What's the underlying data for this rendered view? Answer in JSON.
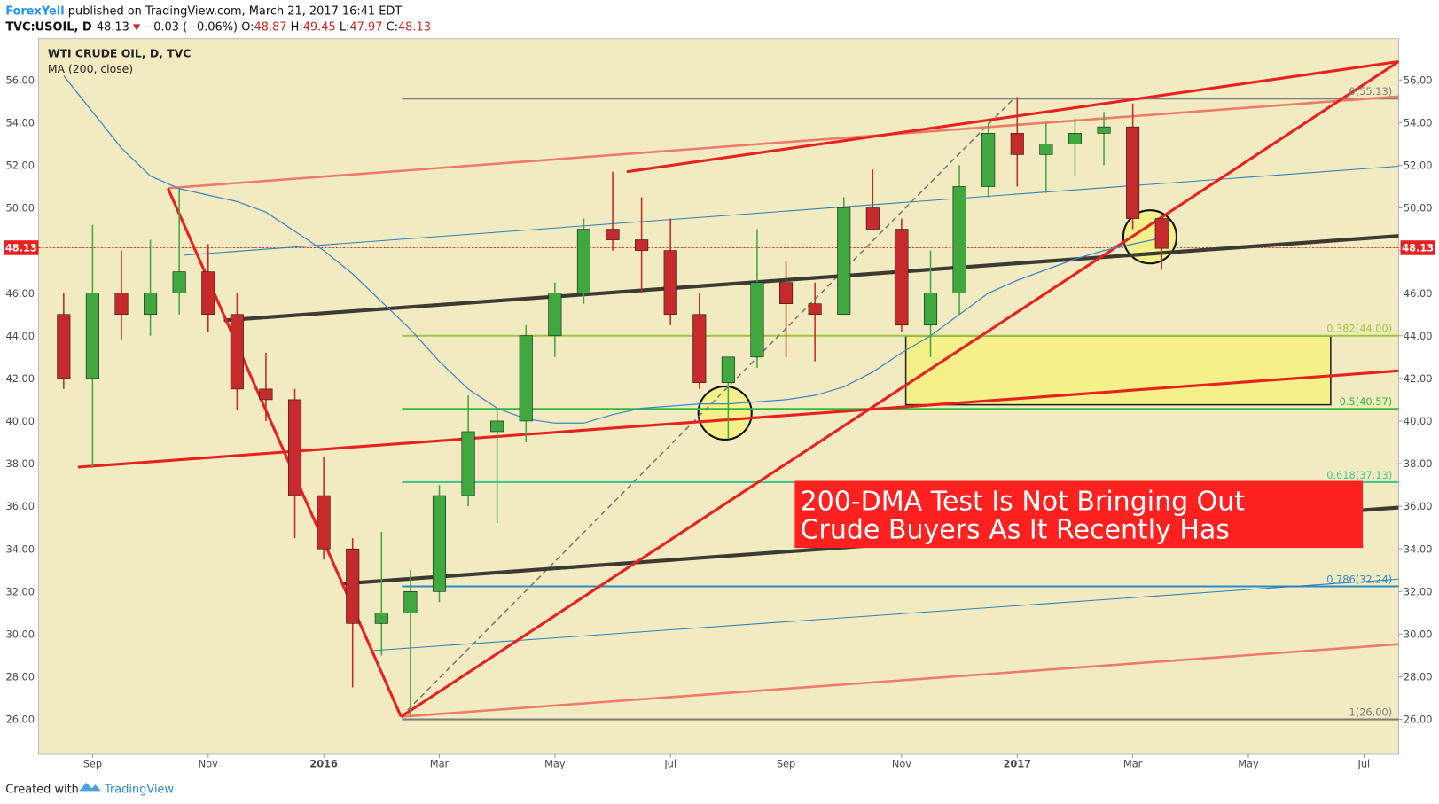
{
  "header": {
    "author": "ForexYell",
    "published": "published on TradingView.com, March 21, 2017 16:41 EDT",
    "symbol": "TVC:USOIL, D",
    "price": "48.13",
    "change": "−0.03 (−0.06%)",
    "ohlc": [
      {
        "key": "O:",
        "value": "48.87"
      },
      {
        "key": "H:",
        "value": "49.45"
      },
      {
        "key": "L:",
        "value": "47.97"
      },
      {
        "key": "C:",
        "value": "48.13"
      }
    ]
  },
  "footer": {
    "created": "Created with",
    "brand": "TradingView"
  },
  "chart_data": {
    "type": "candlestick",
    "title": "WTI CRUDE OIL, D, TVC",
    "categories": [
      null,
      null,
      null,
      null,
      null,
      null,
      null,
      null,
      null,
      null,
      null,
      null,
      null,
      null,
      null,
      null,
      null,
      null,
      null,
      null,
      null,
      null,
      null,
      null,
      null,
      null,
      null,
      null,
      null,
      null,
      null,
      null,
      null,
      null,
      null,
      null,
      null,
      null,
      null
    ],
    "open": [
      45,
      42,
      46,
      45,
      46,
      47,
      45,
      41.5,
      41,
      36.5,
      34,
      30.5,
      31,
      32,
      36.5,
      39.5,
      40,
      44,
      46,
      49,
      48.5,
      48,
      45,
      41.8,
      43,
      46.5,
      45.5,
      45,
      50,
      49,
      44.5,
      46,
      51,
      53.5,
      52.5,
      53,
      53.5,
      53.8,
      49.5
    ],
    "high": [
      46,
      49.2,
      48,
      48.5,
      50.9,
      48.3,
      46,
      43.2,
      41.5,
      38.3,
      34.5,
      34.8,
      33,
      37,
      41.2,
      40.5,
      44.5,
      46.5,
      49.5,
      51.7,
      50.5,
      49.5,
      46,
      43,
      49,
      47.5,
      46.5,
      50.5,
      51.8,
      49.5,
      48,
      52,
      54,
      55.2,
      54,
      54.2,
      54.5,
      54.9,
      49.5
    ],
    "low": [
      41.5,
      37.8,
      43.8,
      44,
      45,
      44.2,
      40.5,
      40,
      34.5,
      33.5,
      27.5,
      29,
      26.1,
      31.5,
      36,
      35.2,
      39,
      43,
      45.5,
      48,
      46,
      44.5,
      41.5,
      39.2,
      42.5,
      43,
      42.8,
      45,
      49,
      44.2,
      43,
      45,
      50.5,
      51,
      50.7,
      51.5,
      52,
      49,
      47.1
    ],
    "close": [
      42,
      46,
      45,
      46,
      47,
      45,
      41.5,
      41,
      36.5,
      34,
      30.5,
      31,
      32,
      36.5,
      39.5,
      40,
      44,
      46,
      49,
      48.5,
      48,
      45,
      41.8,
      43,
      46.5,
      45.5,
      45,
      50,
      49,
      44.5,
      46,
      51,
      53.5,
      52.5,
      53,
      53.5,
      53.8,
      49.5,
      48.1
    ],
    "up_color": "#3fa83f",
    "down_color": "#c62a2a",
    "overlays": [
      {
        "name": "MA (200, close)",
        "color": "#3d85c6",
        "values": [
          56.2,
          54.5,
          52.8,
          51.5,
          50.9,
          50.6,
          50.3,
          49.8,
          48.9,
          48.0,
          46.9,
          45.6,
          44.3,
          42.8,
          41.5,
          40.6,
          40.1,
          39.9,
          39.9,
          40.3,
          40.6,
          40.7,
          40.8,
          40.8,
          40.9,
          41.0,
          41.2,
          41.6,
          42.3,
          43.2,
          44.0,
          45.0,
          46.0,
          46.6,
          47.1,
          47.6,
          48.0,
          48.3,
          48.6
        ]
      }
    ],
    "xlim": [
      -0.87,
      46.2
    ],
    "xticks": [
      {
        "value": 1,
        "label": "Sep"
      },
      {
        "value": 5,
        "label": "Nov"
      },
      {
        "value": 9,
        "label": "2016"
      },
      {
        "value": 13,
        "label": "Mar"
      },
      {
        "value": 17,
        "label": "May"
      },
      {
        "value": 21,
        "label": "Jul"
      },
      {
        "value": 25,
        "label": "Sep"
      },
      {
        "value": 29,
        "label": "Nov"
      },
      {
        "value": 33,
        "label": "2017"
      },
      {
        "value": 37,
        "label": "Mar"
      },
      {
        "value": 41,
        "label": "May"
      },
      {
        "value": 45,
        "label": "Jul"
      }
    ],
    "ylim": [
      24.36,
      57.94
    ],
    "yticks": [
      {
        "value": 26,
        "label": "26.00"
      },
      {
        "value": 28,
        "label": "28.00"
      },
      {
        "value": 30,
        "label": "30.00"
      },
      {
        "value": 32,
        "label": "32.00"
      },
      {
        "value": 34,
        "label": "34.00"
      },
      {
        "value": 36,
        "label": "36.00"
      },
      {
        "value": 38,
        "label": "38.00"
      },
      {
        "value": 40,
        "label": "40.00"
      },
      {
        "value": 42,
        "label": "42.00"
      },
      {
        "value": 44,
        "label": "44.00"
      },
      {
        "value": 46,
        "label": "46.00"
      },
      {
        "value": 48,
        "label": "48.00"
      },
      {
        "value": 50,
        "label": "50.00"
      },
      {
        "value": 52,
        "label": "52.00"
      },
      {
        "value": 54,
        "label": "54.00"
      },
      {
        "value": 56,
        "label": "56.00"
      }
    ],
    "last_price": 48.13,
    "last_price_color": "#e8211f",
    "fib_levels": [
      {
        "label": "0(55.13)",
        "value": 55.13,
        "color": "#7d7d7d"
      },
      {
        "label": "0.382(44.00)",
        "value": 44.0,
        "color": "#9bc53d"
      },
      {
        "label": "0.5(40.57)",
        "value": 40.57,
        "color": "#33bb33"
      },
      {
        "label": "0.618(37.13)",
        "value": 37.13,
        "color": "#3cc890"
      },
      {
        "label": "0.786(32.24)",
        "value": 32.24,
        "color": "#2a8ac4"
      },
      {
        "label": "1(26.00)",
        "value": 26.0,
        "color": "#7d7d7d"
      }
    ],
    "annotation": [
      "200-DMA Test Is Not Bringing Out",
      "Crude Buyers As It Recently Has"
    ]
  }
}
